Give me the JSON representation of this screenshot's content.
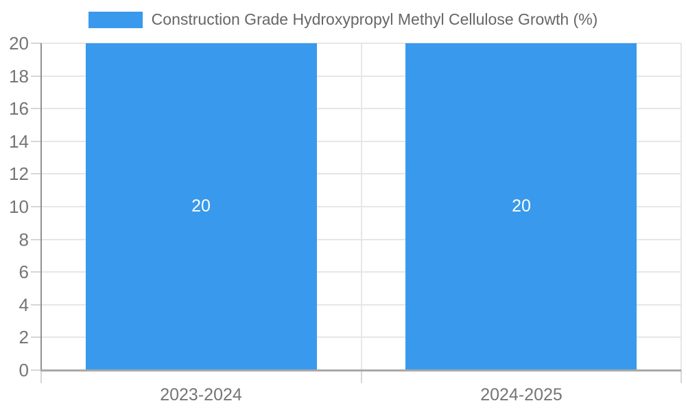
{
  "legend": {
    "label": "Construction Grade Hydroxypropyl Methyl Cellulose Growth (%)"
  },
  "chart_data": {
    "type": "bar",
    "title": "Construction Grade Hydroxypropyl Methyl Cellulose Growth (%)",
    "categories": [
      "2023-2024",
      "2024-2025"
    ],
    "series": [
      {
        "name": "Construction Grade Hydroxypropyl Methyl Cellulose Growth (%)",
        "values": [
          20,
          20
        ]
      }
    ],
    "bar_value_labels": [
      "20",
      "20"
    ],
    "xlabel": "",
    "ylabel": "",
    "ylim": [
      0,
      20
    ],
    "yticks": [
      0,
      2,
      4,
      6,
      8,
      10,
      12,
      14,
      16,
      18,
      20
    ],
    "grid": true,
    "legend_position": "top-center",
    "colors": {
      "bar": "#3999ec",
      "grid": "#e6e6e6",
      "y_axis_line": "#909090",
      "baseline": "#a9a9a9",
      "tick_mark": "#d6d6d6",
      "tick_label": "#757575",
      "legend_text": "#666666",
      "value_label": "#ffffff",
      "background": "#ffffff"
    }
  }
}
